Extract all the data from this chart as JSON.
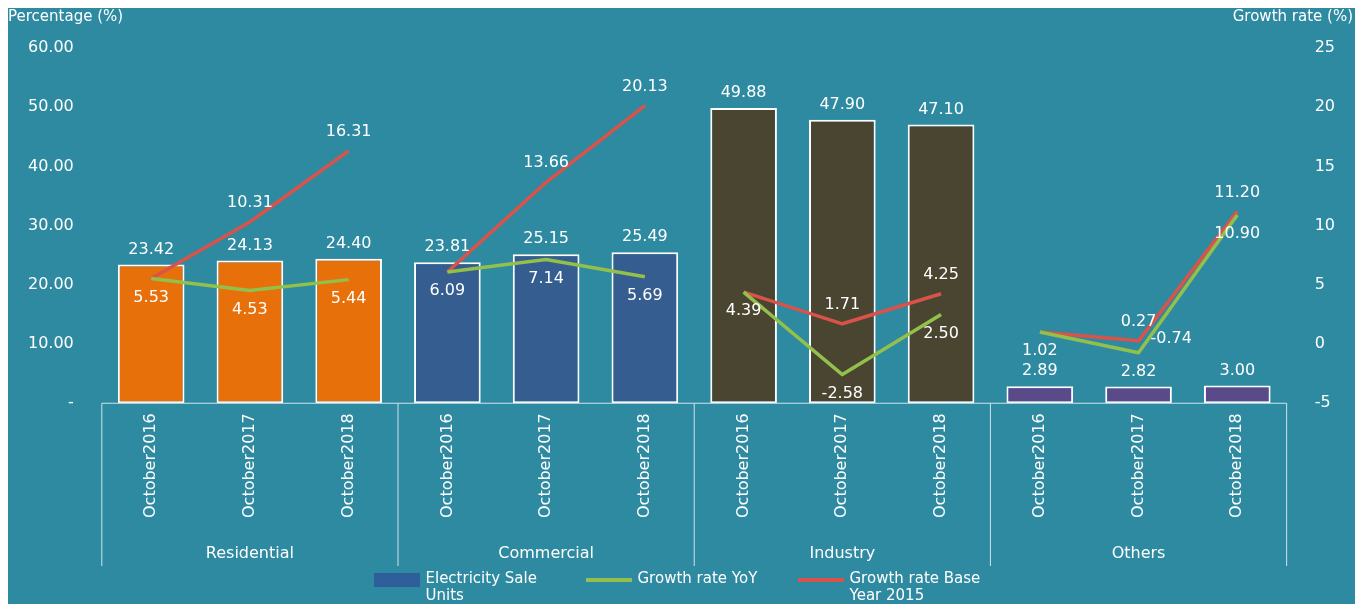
{
  "chart_data": {
    "type": "bar",
    "ylabel": "Percentage (%)",
    "y2label": "Growth rate (%)",
    "categories": [
      "October2016",
      "October2017",
      "October2018",
      "October2016",
      "October2017",
      "October2018",
      "October2016",
      "October2017",
      "October2018",
      "October2016",
      "October2017",
      "October2018"
    ],
    "annotations": [
      "Residential",
      "Commercial",
      "Industry",
      "Others"
    ],
    "series": [
      {
        "name": "Electricity Sale Units",
        "color": "#2f5f9a",
        "colors": [
          "#e8700a",
          "#e8700a",
          "#e8700a",
          "#355d8f",
          "#355d8f",
          "#355d8f",
          "#4a4530",
          "#4a4530",
          "#4a4530",
          "#5a4a8a",
          "#5a4a8a",
          "#5a4a8a"
        ],
        "values": [
          23.42,
          24.13,
          24.4,
          23.81,
          25.15,
          25.49,
          49.88,
          47.9,
          47.1,
          2.89,
          2.82,
          3.0
        ],
        "value_labels": [
          "23.42",
          "24.13",
          "24.40",
          "23.81",
          "25.15",
          "25.49",
          "49.88",
          "47.90",
          "47.10",
          "2.89",
          "2.82",
          "3.00"
        ]
      },
      {
        "name": "Growth rate YoY",
        "type": "line",
        "axis": "y2",
        "color": "#92c04a",
        "values": [
          5.53,
          4.53,
          5.44,
          6.09,
          7.14,
          5.69,
          4.39,
          -2.58,
          2.5,
          1.02,
          -0.74,
          10.9
        ],
        "value_labels": [
          "5.53",
          "4.53",
          "5.44",
          "6.09",
          "7.14",
          "5.69",
          "4.39",
          "-2.58",
          "2.50",
          "1.02",
          "-0.74",
          "10.90"
        ]
      },
      {
        "name": "Growth rate Base Year 2015",
        "type": "line",
        "axis": "y2",
        "color": "#d9534a",
        "values": [
          5.53,
          10.31,
          16.31,
          6.09,
          13.66,
          20.13,
          4.39,
          1.71,
          4.25,
          1.02,
          0.27,
          11.2
        ],
        "value_labels": [
          null,
          "10.31",
          "16.31",
          null,
          "13.66",
          "20.13",
          null,
          "1.71",
          "4.25",
          null,
          "0.27",
          "11.20"
        ]
      }
    ],
    "ylim": [
      0,
      60
    ],
    "yticks": [
      {
        "value": 0,
        "label": "-"
      },
      {
        "value": 10,
        "label": "10.00"
      },
      {
        "value": 20,
        "label": "20.00"
      },
      {
        "value": 30,
        "label": "30.00"
      },
      {
        "value": 40,
        "label": "40.00"
      },
      {
        "value": 50,
        "label": "50.00"
      },
      {
        "value": 60,
        "label": "60.00"
      }
    ],
    "y2lim": [
      -5,
      25
    ],
    "y2ticks": [
      -5,
      0,
      5,
      10,
      15,
      20,
      25
    ],
    "grid": false,
    "legend": "bottom",
    "marker": "none"
  }
}
